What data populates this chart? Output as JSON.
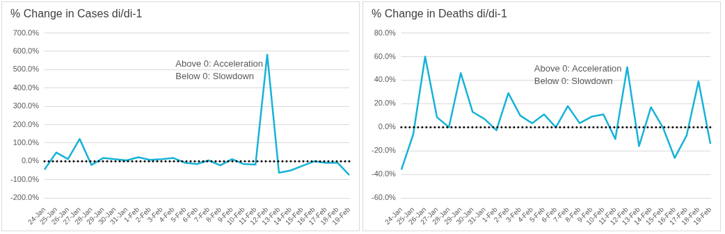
{
  "chart_data": [
    {
      "type": "line",
      "title": "% Change in Cases di/di-1",
      "categories": [
        "24-Jan",
        "25-Jan",
        "26-Jan",
        "27-Jan",
        "28-Jan",
        "29-Jan",
        "30-Jan",
        "31-Jan",
        "1-Feb",
        "2-Feb",
        "3-Feb",
        "4-Feb",
        "5-Feb",
        "6-Feb",
        "7-Feb",
        "8-Feb",
        "9-Feb",
        "10-Feb",
        "11-Feb",
        "12-Feb",
        "13-Feb",
        "14-Feb",
        "15-Feb",
        "16-Feb",
        "17-Feb",
        "18-Feb",
        "19-Feb"
      ],
      "series": [
        {
          "color": "#16b2d8",
          "values": [
            -45,
            48,
            12,
            122,
            -20,
            18,
            12,
            5,
            22,
            8,
            12,
            18,
            -8,
            -15,
            5,
            -22,
            12,
            -15,
            -18,
            582,
            -62,
            -50,
            -25,
            0,
            -8,
            -8,
            -75
          ]
        }
      ],
      "ylim": [
        -200,
        700
      ],
      "yticks": [
        {
          "value": -200,
          "label": "-200.0%"
        },
        {
          "value": -100,
          "label": "-100.0%"
        },
        {
          "value": 0,
          "label": "0.0%"
        },
        {
          "value": 100,
          "label": "100.0%"
        },
        {
          "value": 200,
          "label": "200.0%"
        },
        {
          "value": 300,
          "label": "300.0%"
        },
        {
          "value": 400,
          "label": "400.0%"
        },
        {
          "value": 500,
          "label": "500.0%"
        },
        {
          "value": 600,
          "label": "600.0%"
        },
        {
          "value": 700,
          "label": "700.0%"
        }
      ],
      "ref_lines": [
        {
          "axis": "y",
          "value": 0,
          "color": "#000000",
          "line_style": "dotted"
        }
      ],
      "annotations": [
        "Above 0: Acceleration",
        "Below 0: Slowdown"
      ],
      "grid": "y",
      "legend": false,
      "marker": "none",
      "line_style": "solid"
    },
    {
      "type": "line",
      "title": "% Change in Deaths di/di-1",
      "categories": [
        "24-Jan",
        "25-Jan",
        "26-Jan",
        "27-Jan",
        "28-Jan",
        "29-Jan",
        "30-Jan",
        "31-Jan",
        "1-Feb",
        "2-Feb",
        "3-Feb",
        "4-Feb",
        "5-Feb",
        "6-Feb",
        "7-Feb",
        "8-Feb",
        "9-Feb",
        "10-Feb",
        "11-Feb",
        "12-Feb",
        "13-Feb",
        "14-Feb",
        "15-Feb",
        "16-Feb",
        "17-Feb",
        "18-Feb",
        "19-Feb"
      ],
      "series": [
        {
          "color": "#16b2d8",
          "values": [
            -36,
            -6,
            60,
            8.5,
            0,
            46,
            13,
            7,
            -2.5,
            29,
            10,
            3.5,
            11,
            0,
            18,
            3.5,
            9,
            11,
            -10,
            51,
            -16,
            17,
            0,
            -26,
            -7,
            39,
            -14
          ]
        }
      ],
      "ylim": [
        -60,
        80
      ],
      "yticks": [
        {
          "value": -60,
          "label": "-60.0%"
        },
        {
          "value": -40,
          "label": "-40.0%"
        },
        {
          "value": -20,
          "label": "-20.0%"
        },
        {
          "value": 0,
          "label": "0.0%"
        },
        {
          "value": 20,
          "label": "20.0%"
        },
        {
          "value": 40,
          "label": "40.0%"
        },
        {
          "value": 60,
          "label": "60.0%"
        },
        {
          "value": 80,
          "label": "80.0%"
        }
      ],
      "ref_lines": [
        {
          "axis": "y",
          "value": 0,
          "color": "#000000",
          "line_style": "dotted"
        }
      ],
      "annotations": [
        "Above 0: Acceleration",
        "Below 0: Slowdown"
      ],
      "grid": "y",
      "legend": false,
      "marker": "none",
      "line_style": "solid"
    }
  ]
}
